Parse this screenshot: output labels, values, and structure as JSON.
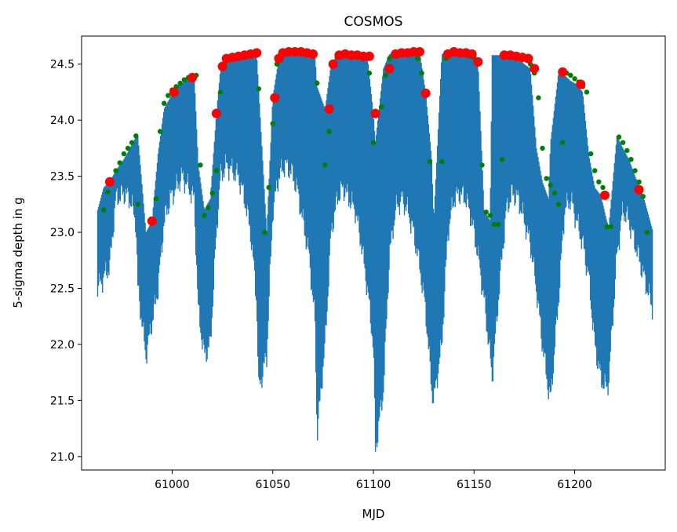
{
  "chart_data": {
    "type": "line",
    "title": "COSMOS",
    "xlabel": "MJD",
    "ylabel": "5-sigma depth in g",
    "xlim": [
      60955,
      61245
    ],
    "ylim": [
      20.88,
      24.75
    ],
    "xticks": [
      61000,
      61050,
      61100,
      61150,
      61200
    ],
    "yticks": [
      21.0,
      21.5,
      22.0,
      22.5,
      23.0,
      23.5,
      24.0,
      24.5
    ],
    "grid": false,
    "colors": {
      "series": "#1f77b4",
      "green": "#008000",
      "red": "#ff0000"
    },
    "series": [
      {
        "kind": "upper-envelope",
        "x": [
          60963,
          60966,
          60969,
          60972,
          60976,
          60979,
          60982,
          60983,
          60987,
          60990,
          60993,
          60996,
          60999,
          61002,
          61005,
          61008,
          61011,
          61013,
          61016,
          61019,
          61022,
          61024,
          61027,
          61030,
          61033,
          61036,
          61039,
          61042,
          61043,
          61047,
          61050,
          61053,
          61056,
          61059,
          61062,
          61065,
          61068,
          61071,
          61072,
          61076,
          61079,
          61082,
          61085,
          61088,
          61091,
          61094,
          61097,
          61100,
          61101,
          61105,
          61108,
          61111,
          61114,
          61117,
          61120,
          61123,
          61126,
          61129,
          61130,
          61134,
          61137,
          61140,
          61143,
          61146,
          61149,
          61152,
          61155,
          61158,
          61159,
          61163,
          61166,
          61169,
          61172,
          61175,
          61178,
          61181,
          61184,
          61187,
          61188,
          61192,
          61195,
          61198,
          61201,
          61204,
          61207,
          61210,
          61213,
          61216,
          61217,
          61221,
          61224,
          61227,
          61230,
          61233,
          61236,
          61239
        ],
        "values": [
          23.2,
          23.4,
          23.45,
          23.55,
          23.65,
          23.75,
          23.85,
          23.86,
          23.0,
          23.1,
          23.7,
          24.1,
          24.2,
          24.3,
          24.33,
          24.37,
          24.4,
          23.6,
          23.2,
          23.3,
          24.06,
          24.45,
          24.55,
          24.57,
          24.58,
          24.59,
          24.6,
          24.6,
          24.28,
          23.0,
          24.2,
          24.55,
          24.6,
          24.61,
          24.61,
          24.61,
          24.6,
          24.59,
          24.3,
          24.1,
          24.5,
          24.58,
          24.59,
          24.58,
          24.58,
          24.57,
          24.57,
          24.06,
          23.8,
          24.46,
          24.59,
          24.6,
          24.6,
          24.61,
          24.61,
          24.61,
          24.24,
          23.65,
          23.1,
          24.59,
          24.61,
          24.6,
          24.6,
          24.59,
          24.57,
          24.52,
          23.2,
          23.1,
          24.58,
          24.58,
          24.57,
          24.56,
          24.55,
          24.5,
          24.46,
          23.75,
          23.45,
          23.3,
          23.8,
          24.43,
          24.4,
          24.35,
          24.32,
          24.25,
          23.7,
          23.4,
          23.33,
          23.1,
          23.05,
          23.86,
          23.75,
          23.65,
          23.5,
          23.39,
          23.2,
          23.0
        ]
      },
      {
        "kind": "lower-envelope",
        "x": [
          60963,
          60966,
          60969,
          60972,
          60976,
          60979,
          60982,
          60983,
          60987,
          60990,
          60993,
          60996,
          60999,
          61002,
          61005,
          61008,
          61011,
          61013,
          61016,
          61019,
          61022,
          61024,
          61027,
          61030,
          61033,
          61036,
          61039,
          61042,
          61043,
          61047,
          61050,
          61053,
          61056,
          61059,
          61062,
          61065,
          61068,
          61071,
          61072,
          61076,
          61079,
          61082,
          61085,
          61088,
          61091,
          61094,
          61097,
          61100,
          61101,
          61105,
          61108,
          61111,
          61114,
          61117,
          61120,
          61123,
          61126,
          61129,
          61130,
          61134,
          61137,
          61140,
          61143,
          61146,
          61149,
          61152,
          61155,
          61158,
          61159,
          61163,
          61166,
          61169,
          61172,
          61175,
          61178,
          61181,
          61184,
          61187,
          61188,
          61192,
          61195,
          61198,
          61201,
          61204,
          61207,
          61210,
          61213,
          61216,
          61217,
          61221,
          61224,
          61227,
          61230,
          61233,
          61236,
          61239
        ],
        "values": [
          22.5,
          22.6,
          22.7,
          23.3,
          23.35,
          23.3,
          23.1,
          22.5,
          21.9,
          22.2,
          22.5,
          23.1,
          23.3,
          23.4,
          23.5,
          23.4,
          23.3,
          22.3,
          21.9,
          22.0,
          23.0,
          23.5,
          23.6,
          23.55,
          23.5,
          23.3,
          23.0,
          22.4,
          21.6,
          21.9,
          23.2,
          23.5,
          23.6,
          23.55,
          23.4,
          23.1,
          22.8,
          22.2,
          21.2,
          22.0,
          23.0,
          23.3,
          23.4,
          23.3,
          23.2,
          22.9,
          22.5,
          22.0,
          21.05,
          21.6,
          22.8,
          23.2,
          23.3,
          23.2,
          23.0,
          22.7,
          22.3,
          21.6,
          21.5,
          22.0,
          23.0,
          23.3,
          23.35,
          23.3,
          23.1,
          22.8,
          22.4,
          21.9,
          21.7,
          22.6,
          23.2,
          23.35,
          23.3,
          23.1,
          22.9,
          22.5,
          22.0,
          21.6,
          21.5,
          22.4,
          23.2,
          23.3,
          23.1,
          22.9,
          22.6,
          22.0,
          21.7,
          21.6,
          21.7,
          22.8,
          23.2,
          23.1,
          22.9,
          22.7,
          22.5,
          22.3
        ]
      },
      {
        "kind": "green-points",
        "x": [
          60966,
          60968,
          60970,
          60972,
          60974,
          60976,
          60978,
          60980,
          60982,
          60983,
          60992,
          60994,
          60996,
          60998,
          61000,
          61002,
          61004,
          61006,
          61008,
          61010,
          61012,
          61014,
          61016,
          61018,
          61020,
          61022,
          61024,
          61026,
          61028,
          61030,
          61032,
          61034,
          61036,
          61038,
          61040,
          61043,
          61046,
          61048,
          61050,
          61052,
          61054,
          61056,
          61058,
          61060,
          61062,
          61064,
          61066,
          61068,
          61070,
          61072,
          61076,
          61078,
          61080,
          61082,
          61084,
          61086,
          61088,
          61090,
          61092,
          61094,
          61096,
          61098,
          61100,
          61104,
          61106,
          61108,
          61110,
          61112,
          61114,
          61116,
          61118,
          61120,
          61122,
          61124,
          61126,
          61128,
          61134,
          61136,
          61138,
          61140,
          61142,
          61144,
          61146,
          61148,
          61150,
          61152,
          61154,
          61156,
          61158,
          61160,
          61162,
          61164,
          61166,
          61168,
          61170,
          61172,
          61174,
          61176,
          61178,
          61180,
          61182,
          61184,
          61186,
          61188,
          61190,
          61192,
          61194,
          61196,
          61198,
          61200,
          61202,
          61204,
          61206,
          61208,
          61210,
          61212,
          61214,
          61216,
          61218,
          61222,
          61224,
          61226,
          61228,
          61230,
          61232,
          61234,
          61236
        ],
        "values": [
          23.2,
          23.36,
          23.45,
          23.55,
          23.62,
          23.7,
          23.75,
          23.8,
          23.86,
          23.25,
          23.3,
          23.9,
          24.15,
          24.22,
          24.27,
          24.3,
          24.33,
          24.36,
          24.38,
          24.39,
          24.4,
          23.6,
          23.15,
          23.22,
          23.35,
          23.55,
          24.25,
          24.5,
          24.55,
          24.56,
          24.57,
          24.58,
          24.59,
          24.6,
          24.6,
          24.28,
          23.0,
          23.4,
          23.97,
          24.5,
          24.57,
          24.6,
          24.6,
          24.61,
          24.6,
          24.6,
          24.59,
          24.58,
          24.58,
          24.33,
          23.6,
          23.9,
          24.5,
          24.56,
          24.58,
          24.58,
          24.58,
          24.57,
          24.57,
          24.56,
          24.57,
          24.42,
          23.8,
          24.12,
          24.4,
          24.55,
          24.58,
          24.6,
          24.6,
          24.61,
          24.61,
          24.61,
          24.55,
          24.42,
          24.24,
          23.63,
          23.63,
          24.55,
          24.6,
          24.6,
          24.6,
          24.59,
          24.58,
          24.57,
          24.56,
          24.5,
          23.6,
          23.18,
          23.15,
          23.07,
          23.07,
          23.65,
          24.57,
          24.57,
          24.57,
          24.56,
          24.55,
          24.54,
          24.5,
          24.42,
          24.2,
          23.75,
          23.48,
          23.42,
          23.35,
          23.25,
          23.8,
          24.42,
          24.4,
          24.37,
          24.34,
          24.3,
          24.25,
          23.7,
          23.55,
          23.45,
          23.4,
          23.05,
          23.05,
          23.85,
          23.8,
          23.73,
          23.65,
          23.55,
          23.45,
          23.32,
          23.0
        ]
      },
      {
        "kind": "red-points",
        "x": [
          60969,
          60990,
          61001,
          61010,
          61022,
          61025,
          61027,
          61030,
          61033,
          61036,
          61039,
          61042,
          61051,
          61053,
          61055,
          61058,
          61061,
          61064,
          61067,
          61070,
          61078,
          61080,
          61083,
          61086,
          61089,
          61092,
          61095,
          61098,
          61101,
          61108,
          61111,
          61114,
          61117,
          61120,
          61123,
          61126,
          61137,
          61140,
          61143,
          61146,
          61149,
          61152,
          61165,
          61168,
          61171,
          61174,
          61177,
          61180,
          61194,
          61203,
          61215,
          61232
        ],
        "values": [
          23.45,
          23.1,
          24.25,
          24.38,
          24.06,
          24.48,
          24.55,
          24.56,
          24.57,
          24.58,
          24.59,
          24.6,
          24.2,
          24.55,
          24.6,
          24.61,
          24.61,
          24.61,
          24.6,
          24.59,
          24.1,
          24.5,
          24.58,
          24.59,
          24.58,
          24.58,
          24.57,
          24.57,
          24.06,
          24.46,
          24.59,
          24.6,
          24.6,
          24.61,
          24.61,
          24.24,
          24.59,
          24.61,
          24.6,
          24.6,
          24.59,
          24.52,
          24.58,
          24.58,
          24.57,
          24.56,
          24.55,
          24.46,
          24.43,
          24.32,
          23.33,
          23.38
        ]
      }
    ]
  }
}
